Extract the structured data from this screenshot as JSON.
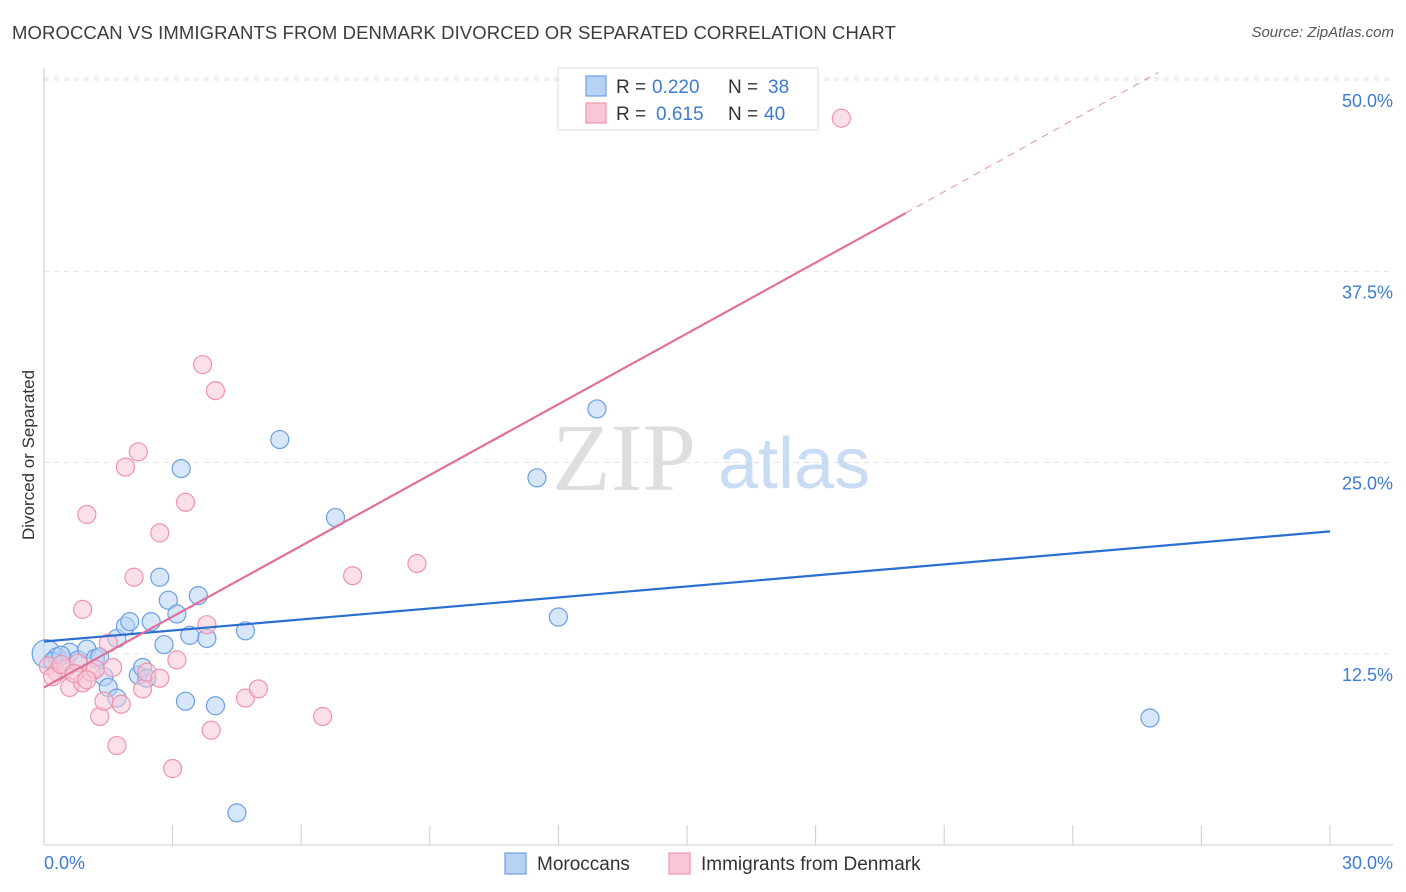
{
  "chart_data": {
    "type": "scatter",
    "title": "MOROCCAN VS IMMIGRANTS FROM DENMARK DIVORCED OR SEPARATED CORRELATION CHART",
    "source": "Source: ZipAtlas.com",
    "xlabel": "",
    "ylabel": "Divorced or Separated",
    "xlim": [
      0,
      30
    ],
    "ylim": [
      0,
      50
    ],
    "x_tick_labels": [
      "0.0%",
      "30.0%"
    ],
    "y_ticks": [
      {
        "value": 12.5,
        "label": "12.5%"
      },
      {
        "value": 25.0,
        "label": "25.0%"
      },
      {
        "value": 37.5,
        "label": "37.5%"
      },
      {
        "value": 50.0,
        "label": "50.0%"
      }
    ],
    "watermark": {
      "part1": "ZIP",
      "part2": "atlas"
    },
    "legend": {
      "r_label": "R =",
      "n_label": "N =",
      "entries": [
        {
          "r": "0.220",
          "n": "38"
        },
        {
          "r": "0.615",
          "n": "40"
        }
      ]
    },
    "series": [
      {
        "name": "Moroccans",
        "color": "#6a9fe3",
        "fill": "#b8d2f5",
        "line_color": "#2a6fd0",
        "trend": {
          "x0": 0,
          "y0": 13.3,
          "x1": 30,
          "y1": 20.5
        },
        "points": [
          [
            0.05,
            12.5
          ],
          [
            0.3,
            12.3
          ],
          [
            0.5,
            12.0
          ],
          [
            0.6,
            12.6
          ],
          [
            0.8,
            12.1
          ],
          [
            1.0,
            12.8
          ],
          [
            1.2,
            12.2
          ],
          [
            1.3,
            12.3
          ],
          [
            1.4,
            11.0
          ],
          [
            1.5,
            10.3
          ],
          [
            1.7,
            9.6
          ],
          [
            1.7,
            13.5
          ],
          [
            1.9,
            14.3
          ],
          [
            2.0,
            14.6
          ],
          [
            2.2,
            11.1
          ],
          [
            2.3,
            11.6
          ],
          [
            2.4,
            10.9
          ],
          [
            2.5,
            14.6
          ],
          [
            2.7,
            17.5
          ],
          [
            2.8,
            13.1
          ],
          [
            2.9,
            16.0
          ],
          [
            3.1,
            15.1
          ],
          [
            3.2,
            24.6
          ],
          [
            3.3,
            9.4
          ],
          [
            3.4,
            13.7
          ],
          [
            3.6,
            16.3
          ],
          [
            3.8,
            13.5
          ],
          [
            4.0,
            9.1
          ],
          [
            4.5,
            2.1
          ],
          [
            4.7,
            14.0
          ],
          [
            5.5,
            26.5
          ],
          [
            6.8,
            21.4
          ],
          [
            11.5,
            24.0
          ],
          [
            12.0,
            14.9
          ],
          [
            12.9,
            28.5
          ],
          [
            25.8,
            8.3
          ],
          [
            0.2,
            12.0
          ],
          [
            0.4,
            12.4
          ]
        ]
      },
      {
        "name": "Immigrants from Denmark",
        "color": "#ef93ae",
        "fill": "#f8c7d5",
        "line_color": "#e2719a",
        "trend": {
          "x0": 0,
          "y0": 10.3,
          "x1": 20.1,
          "y1": 41.3
        },
        "trend_dashed": {
          "x0": 20.1,
          "y0": 41.3,
          "x1": 26.0,
          "y1": 50.5
        },
        "points": [
          [
            0.1,
            11.7
          ],
          [
            0.3,
            11.3
          ],
          [
            0.5,
            11.5
          ],
          [
            0.6,
            10.3
          ],
          [
            0.8,
            11.9
          ],
          [
            0.9,
            10.6
          ],
          [
            0.9,
            15.4
          ],
          [
            1.0,
            21.6
          ],
          [
            1.1,
            11.3
          ],
          [
            1.2,
            11.5
          ],
          [
            1.3,
            8.4
          ],
          [
            1.4,
            9.4
          ],
          [
            1.5,
            13.2
          ],
          [
            1.6,
            11.6
          ],
          [
            1.7,
            6.5
          ],
          [
            1.8,
            9.2
          ],
          [
            1.9,
            24.7
          ],
          [
            2.1,
            17.5
          ],
          [
            2.2,
            25.7
          ],
          [
            2.3,
            10.2
          ],
          [
            2.4,
            11.3
          ],
          [
            2.7,
            10.9
          ],
          [
            2.7,
            20.4
          ],
          [
            3.0,
            5.0
          ],
          [
            3.1,
            12.1
          ],
          [
            3.3,
            22.4
          ],
          [
            3.7,
            31.4
          ],
          [
            3.8,
            14.4
          ],
          [
            3.9,
            7.5
          ],
          [
            4.0,
            29.7
          ],
          [
            4.7,
            9.6
          ],
          [
            5.0,
            10.2
          ],
          [
            6.5,
            8.4
          ],
          [
            7.2,
            17.6
          ],
          [
            8.7,
            18.4
          ],
          [
            18.6,
            47.5
          ],
          [
            0.2,
            11.0
          ],
          [
            0.4,
            11.8
          ],
          [
            0.7,
            11.2
          ],
          [
            1.0,
            10.8
          ]
        ]
      }
    ]
  }
}
